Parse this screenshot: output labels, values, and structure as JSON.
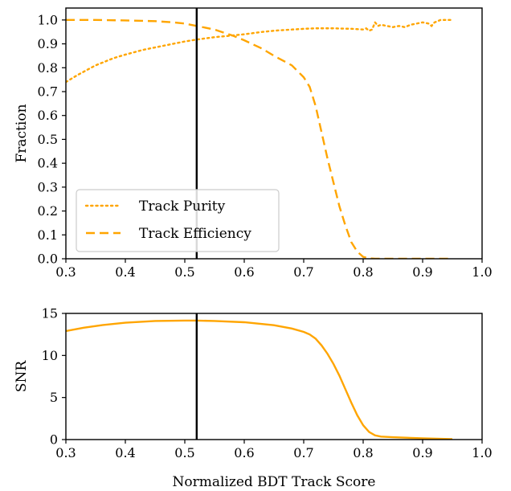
{
  "colors": {
    "series": "#ffa500",
    "cut_line": "#000000",
    "legend_border": "#cccccc"
  },
  "chart_data": [
    {
      "type": "line",
      "xlabel": "",
      "ylabel": "Fraction",
      "xlim": [
        0.3,
        1.0
      ],
      "ylim": [
        0.0,
        1.05
      ],
      "xticks": [
        "0.3",
        "0.4",
        "0.5",
        "0.6",
        "0.7",
        "0.8",
        "0.9",
        "1.0"
      ],
      "yticks": [
        "0.0",
        "0.1",
        "0.2",
        "0.3",
        "0.4",
        "0.5",
        "0.6",
        "0.7",
        "0.8",
        "0.9",
        "1.0"
      ],
      "vline_x": 0.52,
      "legend_position": "lower-left",
      "series": [
        {
          "name": "Track Purity",
          "style": "dotted",
          "x": [
            0.3,
            0.32,
            0.35,
            0.38,
            0.4,
            0.43,
            0.45,
            0.48,
            0.5,
            0.52,
            0.55,
            0.58,
            0.6,
            0.63,
            0.65,
            0.68,
            0.7,
            0.72,
            0.75,
            0.78,
            0.8,
            0.805,
            0.81,
            0.815,
            0.82,
            0.825,
            0.83,
            0.84,
            0.85,
            0.86,
            0.87,
            0.88,
            0.89,
            0.9,
            0.91,
            0.915,
            0.92,
            0.93,
            0.94,
            0.95
          ],
          "y": [
            0.74,
            0.77,
            0.81,
            0.84,
            0.855,
            0.875,
            0.885,
            0.9,
            0.91,
            0.918,
            0.928,
            0.935,
            0.94,
            0.95,
            0.955,
            0.96,
            0.963,
            0.965,
            0.965,
            0.963,
            0.96,
            0.965,
            0.955,
            0.96,
            0.99,
            0.975,
            0.98,
            0.975,
            0.97,
            0.975,
            0.97,
            0.98,
            0.985,
            0.99,
            0.985,
            0.975,
            0.99,
            1.0,
            1.0,
            1.0
          ]
        },
        {
          "name": "Track Efficiency",
          "style": "dashed",
          "x": [
            0.3,
            0.35,
            0.4,
            0.45,
            0.48,
            0.5,
            0.52,
            0.55,
            0.58,
            0.6,
            0.63,
            0.65,
            0.68,
            0.7,
            0.71,
            0.72,
            0.73,
            0.74,
            0.75,
            0.76,
            0.77,
            0.78,
            0.79,
            0.8,
            0.81,
            0.82,
            0.85,
            0.9,
            0.95
          ],
          "y": [
            1.0,
            1.0,
            0.998,
            0.995,
            0.99,
            0.985,
            0.975,
            0.96,
            0.935,
            0.915,
            0.88,
            0.85,
            0.81,
            0.76,
            0.72,
            0.64,
            0.53,
            0.42,
            0.32,
            0.22,
            0.14,
            0.07,
            0.03,
            0.008,
            0.002,
            0.0,
            0.0,
            0.0,
            0.0
          ]
        }
      ]
    },
    {
      "type": "line",
      "xlabel": "Normalized BDT Track Score",
      "ylabel": "SNR",
      "xlim": [
        0.3,
        1.0
      ],
      "ylim": [
        0,
        15
      ],
      "xticks": [
        "0.3",
        "0.4",
        "0.5",
        "0.6",
        "0.7",
        "0.8",
        "0.9",
        "1.0"
      ],
      "yticks": [
        "0",
        "5",
        "10",
        "15"
      ],
      "vline_x": 0.52,
      "series": [
        {
          "style": "solid",
          "x": [
            0.3,
            0.33,
            0.36,
            0.4,
            0.45,
            0.5,
            0.52,
            0.55,
            0.6,
            0.65,
            0.68,
            0.7,
            0.71,
            0.72,
            0.73,
            0.74,
            0.75,
            0.76,
            0.77,
            0.78,
            0.79,
            0.8,
            0.81,
            0.82,
            0.83,
            0.85,
            0.9,
            0.95
          ],
          "y": [
            12.9,
            13.3,
            13.6,
            13.9,
            14.1,
            14.15,
            14.15,
            14.1,
            13.95,
            13.6,
            13.2,
            12.8,
            12.5,
            12.0,
            11.2,
            10.2,
            9.0,
            7.6,
            6.0,
            4.4,
            2.9,
            1.7,
            0.9,
            0.5,
            0.35,
            0.28,
            0.15,
            0.05
          ]
        }
      ]
    }
  ]
}
